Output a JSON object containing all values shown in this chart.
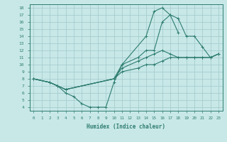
{
  "xlabel": "Humidex (Indice chaleur)",
  "ylabel": "",
  "xlim": [
    -0.5,
    23.5
  ],
  "ylim": [
    3.5,
    18.5
  ],
  "yticks": [
    4,
    5,
    6,
    7,
    8,
    9,
    10,
    11,
    12,
    13,
    14,
    15,
    16,
    17,
    18
  ],
  "xticks": [
    0,
    1,
    2,
    3,
    4,
    5,
    6,
    7,
    8,
    9,
    10,
    11,
    12,
    13,
    14,
    15,
    16,
    17,
    18,
    19,
    20,
    21,
    22,
    23
  ],
  "bg_color": "#c8e8e8",
  "line_color": "#2e7d6e",
  "grid_color": "#a0c8c8",
  "lines": [
    {
      "x": [
        0,
        2,
        3,
        4,
        5,
        6,
        7,
        8,
        9,
        10,
        11,
        14,
        15,
        16,
        17,
        18
      ],
      "y": [
        8,
        7.5,
        7,
        6,
        5.5,
        4.5,
        4,
        4,
        4,
        7.5,
        10,
        14,
        17.5,
        18,
        17,
        14.5
      ]
    },
    {
      "x": [
        0,
        2,
        3,
        4,
        10,
        11,
        13,
        14,
        15,
        16,
        17,
        18,
        19,
        20,
        21,
        22,
        23
      ],
      "y": [
        8,
        7.5,
        7,
        6.5,
        8,
        10,
        11,
        12,
        12,
        16,
        17,
        16.5,
        14,
        14,
        12.5,
        11,
        11.5
      ]
    },
    {
      "x": [
        0,
        2,
        3,
        4,
        10,
        11,
        13,
        14,
        15,
        16,
        17,
        18,
        19,
        20,
        21,
        22,
        23
      ],
      "y": [
        8,
        7.5,
        7,
        6.5,
        8,
        9.5,
        10.5,
        11,
        11.5,
        12,
        11.5,
        11,
        11,
        11,
        11,
        11,
        11.5
      ]
    },
    {
      "x": [
        0,
        2,
        3,
        4,
        10,
        11,
        13,
        14,
        15,
        16,
        17,
        18,
        19,
        20,
        21,
        22,
        23
      ],
      "y": [
        8,
        7.5,
        7,
        6.5,
        8,
        9,
        9.5,
        10,
        10,
        10.5,
        11,
        11,
        11,
        11,
        11,
        11,
        11.5
      ]
    }
  ]
}
